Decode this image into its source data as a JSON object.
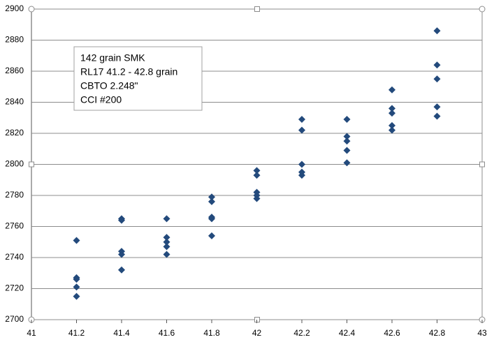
{
  "chart_data": {
    "type": "scatter",
    "annotation": [
      "142 grain SMK",
      "RL17 41.2 - 42.8 grain",
      "CBTO 2.248\"",
      "CCI #200"
    ],
    "x": [
      41.2,
      41.2,
      41.2,
      41.2,
      41.2,
      41.4,
      41.4,
      41.4,
      41.4,
      41.4,
      41.6,
      41.6,
      41.6,
      41.6,
      41.6,
      41.8,
      41.8,
      41.8,
      41.8,
      41.8,
      42,
      42,
      42,
      42,
      42,
      42.2,
      42.2,
      42.2,
      42.2,
      42.2,
      42.4,
      42.4,
      42.4,
      42.4,
      42.4,
      42.6,
      42.6,
      42.6,
      42.6,
      42.6,
      42.8,
      42.8,
      42.8,
      42.8,
      42.8
    ],
    "values": [
      2751,
      2727,
      2726,
      2721,
      2715,
      2765,
      2764,
      2744,
      2742,
      2732,
      2765,
      2753,
      2750,
      2747,
      2742,
      2779,
      2776,
      2766,
      2765,
      2754,
      2796,
      2793,
      2782,
      2780,
      2778,
      2829,
      2822,
      2800,
      2795,
      2793,
      2829,
      2818,
      2815,
      2809,
      2801,
      2848,
      2836,
      2833,
      2825,
      2822,
      2886,
      2864,
      2855,
      2837,
      2831
    ],
    "color": "#234a7c",
    "xlim": [
      41,
      43
    ],
    "xticks": [
      41,
      41.2,
      41.4,
      41.6,
      41.8,
      42,
      42.2,
      42.4,
      42.6,
      42.8,
      43
    ],
    "ylim": [
      2700,
      2900
    ],
    "yticks": [
      2700,
      2720,
      2740,
      2760,
      2780,
      2800,
      2820,
      2840,
      2860,
      2880,
      2900
    ],
    "grid": true
  }
}
